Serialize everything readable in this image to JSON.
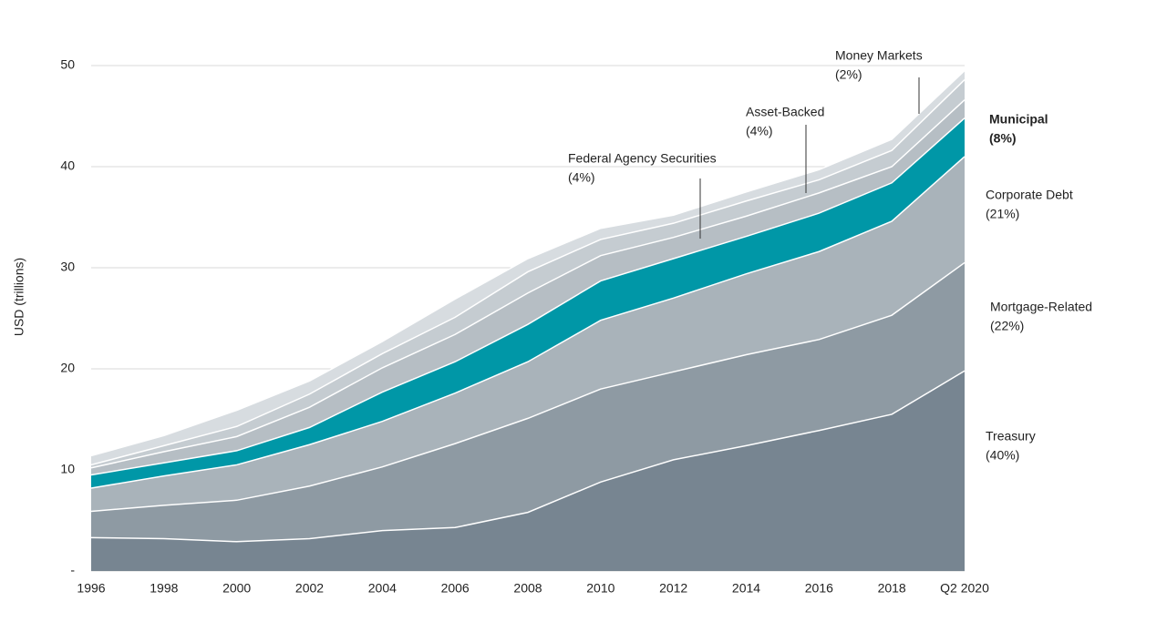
{
  "chart_data": {
    "type": "stacked-area",
    "y_axis_label": "USD (trillions)",
    "categories": [
      "1996",
      "1998",
      "2000",
      "2002",
      "2004",
      "2006",
      "2008",
      "2010",
      "2012",
      "2014",
      "2016",
      "2018",
      "Q2 2020"
    ],
    "ylim": [
      0,
      50
    ],
    "yticks": [
      {
        "value": 0,
        "label": "-"
      },
      10,
      20,
      30,
      40,
      50
    ],
    "grid": true,
    "series": [
      {
        "name": "Treasury",
        "share": 40,
        "share_label": "(40%)",
        "color": "#778591",
        "values": [
          3.3,
          3.2,
          2.9,
          3.2,
          4.0,
          4.3,
          5.8,
          8.8,
          11.0,
          12.4,
          13.9,
          15.5,
          19.8
        ]
      },
      {
        "name": "Mortgage-Related",
        "share": 22,
        "share_label": "(22%)",
        "color": "#8e9aa3",
        "values": [
          2.6,
          3.3,
          4.1,
          5.2,
          6.3,
          8.3,
          9.3,
          9.2,
          8.7,
          9.0,
          9.0,
          9.8,
          10.7
        ]
      },
      {
        "name": "Corporate Debt",
        "share": 21,
        "share_label": "(21%)",
        "color": "#a9b3ba",
        "values": [
          2.3,
          2.9,
          3.5,
          4.1,
          4.5,
          5.0,
          5.6,
          6.8,
          7.3,
          8.0,
          8.7,
          9.3,
          10.5
        ]
      },
      {
        "name": "Municipal",
        "share": 8,
        "share_label": "(8%)",
        "color": "#0097a7",
        "values": [
          1.3,
          1.3,
          1.4,
          1.7,
          2.9,
          3.1,
          3.7,
          3.9,
          3.9,
          3.7,
          3.8,
          3.8,
          3.8
        ]
      },
      {
        "name": "Federal Agency Securities",
        "share": 4,
        "share_label": "(4%)",
        "color": "#b6bec4",
        "values": [
          0.7,
          1.1,
          1.4,
          2.0,
          2.4,
          2.7,
          3.1,
          2.5,
          2.1,
          2.0,
          2.0,
          1.6,
          1.8
        ]
      },
      {
        "name": "Asset-Backed",
        "share": 4,
        "share_label": "(4%)",
        "color": "#c5ccd1",
        "values": [
          0.3,
          0.6,
          1.0,
          1.3,
          1.4,
          1.7,
          2.1,
          1.6,
          1.4,
          1.5,
          1.3,
          1.6,
          2.0
        ]
      },
      {
        "name": "Money Markets",
        "share": 2,
        "share_label": "(2%)",
        "color": "#d7dce0",
        "values": [
          0.9,
          1.0,
          1.6,
          1.3,
          1.2,
          1.8,
          1.3,
          1.1,
          0.8,
          0.9,
          1.0,
          1.1,
          0.9
        ]
      }
    ]
  }
}
